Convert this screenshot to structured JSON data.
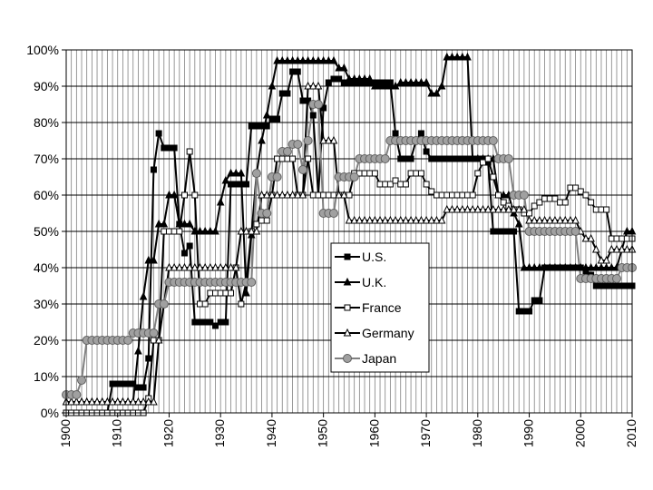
{
  "chart_data": {
    "type": "line",
    "x": [
      1900,
      1901,
      1902,
      1903,
      1904,
      1905,
      1906,
      1907,
      1908,
      1909,
      1910,
      1911,
      1912,
      1913,
      1914,
      1915,
      1916,
      1917,
      1918,
      1919,
      1920,
      1921,
      1922,
      1923,
      1924,
      1925,
      1926,
      1927,
      1928,
      1929,
      1930,
      1931,
      1932,
      1933,
      1934,
      1935,
      1936,
      1937,
      1938,
      1939,
      1940,
      1941,
      1942,
      1943,
      1944,
      1945,
      1946,
      1947,
      1948,
      1949,
      1950,
      1951,
      1952,
      1953,
      1954,
      1955,
      1956,
      1957,
      1958,
      1959,
      1960,
      1961,
      1962,
      1963,
      1964,
      1965,
      1966,
      1967,
      1968,
      1969,
      1970,
      1971,
      1972,
      1973,
      1974,
      1975,
      1976,
      1977,
      1978,
      1979,
      1980,
      1981,
      1982,
      1983,
      1984,
      1985,
      1986,
      1987,
      1988,
      1989,
      1990,
      1991,
      1992,
      1993,
      1994,
      1995,
      1996,
      1997,
      1998,
      1999,
      2000,
      2001,
      2002,
      2003,
      2004,
      2005,
      2006,
      2007,
      2008,
      2009,
      2010
    ],
    "series": [
      {
        "name": "U.S.",
        "color": "#000000",
        "fill": "#000000",
        "marker": "square",
        "values": [
          0,
          0,
          0,
          0,
          0,
          0,
          0,
          0,
          0,
          8,
          8,
          8,
          8,
          8,
          7,
          7,
          15,
          67,
          77,
          73,
          73,
          73,
          52,
          44,
          46,
          25,
          25,
          25,
          25,
          24,
          25,
          25,
          63,
          63,
          63,
          63,
          79,
          79,
          79,
          79,
          81,
          81,
          88,
          88,
          94,
          94,
          86,
          86,
          82,
          60,
          84,
          91,
          92,
          92,
          91,
          91,
          91,
          91,
          91,
          91,
          91,
          91,
          91,
          91,
          77,
          70,
          70,
          70,
          75,
          77,
          72,
          70,
          70,
          70,
          70,
          70,
          70,
          70,
          70,
          70,
          70,
          70,
          69,
          50,
          50,
          50,
          50,
          50,
          28,
          28,
          28,
          31,
          31,
          40,
          40,
          40,
          40,
          40,
          40,
          40,
          40,
          39,
          38,
          35,
          35,
          35,
          35,
          35,
          35,
          35,
          35
        ]
      },
      {
        "name": "U.K.",
        "color": "#000000",
        "fill": "#000000",
        "marker": "triangle",
        "values": [
          3,
          3,
          3,
          3,
          3,
          3,
          3,
          3,
          3,
          3,
          3,
          3,
          3,
          3,
          17,
          32,
          42,
          42,
          52,
          52,
          60,
          60,
          52,
          52,
          52,
          50,
          50,
          50,
          50,
          50,
          58,
          64,
          66,
          66,
          66,
          33,
          49,
          66,
          75,
          82,
          90,
          97,
          97,
          97,
          97,
          97,
          97,
          97,
          97,
          97,
          97,
          97,
          97,
          95,
          95,
          92,
          92,
          92,
          92,
          92,
          90,
          90,
          90,
          90,
          90,
          91,
          91,
          91,
          91,
          91,
          91,
          88,
          88,
          90,
          98,
          98,
          98,
          98,
          98,
          70,
          70,
          70,
          70,
          70,
          60,
          60,
          60,
          55,
          52,
          40,
          40,
          40,
          40,
          40,
          40,
          40,
          40,
          40,
          40,
          40,
          40,
          40,
          40,
          40,
          40,
          40,
          40,
          40,
          45,
          50,
          50
        ]
      },
      {
        "name": "France",
        "color": "#000000",
        "fill": "#ffffff",
        "marker": "square",
        "values": [
          0,
          0,
          0,
          0,
          0,
          0,
          0,
          0,
          0,
          0,
          0,
          0,
          0,
          0,
          0,
          0,
          4,
          20,
          20,
          50,
          50,
          50,
          50,
          60,
          72,
          60,
          30,
          30,
          33,
          33,
          33,
          33,
          33,
          40,
          30,
          36,
          50,
          52,
          53,
          53,
          60,
          70,
          70,
          70,
          70,
          60,
          60,
          70,
          60,
          60,
          60,
          60,
          60,
          60,
          60,
          60,
          66,
          66,
          66,
          66,
          66,
          63,
          63,
          63,
          64,
          63,
          63,
          66,
          66,
          66,
          63,
          61,
          60,
          60,
          60,
          60,
          60,
          60,
          60,
          60,
          66,
          69,
          70,
          65,
          60,
          58,
          57,
          56,
          56,
          55,
          55,
          57,
          58,
          59,
          59,
          59,
          58,
          58,
          62,
          62,
          61,
          60,
          58,
          56,
          56,
          56,
          48,
          48,
          48,
          48,
          48
        ]
      },
      {
        "name": "Germany",
        "color": "#000000",
        "fill": "#ffffff",
        "marker": "triangle",
        "values": [
          3,
          3,
          3,
          3,
          3,
          3,
          3,
          3,
          3,
          3,
          3,
          3,
          3,
          3,
          3,
          3,
          3,
          3,
          20,
          30,
          40,
          40,
          40,
          40,
          40,
          40,
          40,
          40,
          40,
          40,
          40,
          40,
          40,
          40,
          50,
          50,
          50,
          50,
          60,
          60,
          60,
          60,
          60,
          60,
          60,
          60,
          60,
          90,
          90,
          90,
          75,
          75,
          75,
          60,
          60,
          53,
          53,
          53,
          53,
          53,
          53,
          53,
          53,
          53,
          53,
          53,
          53,
          53,
          53,
          53,
          53,
          53,
          53,
          53,
          56,
          56,
          56,
          56,
          56,
          56,
          56,
          56,
          56,
          56,
          56,
          56,
          56,
          56,
          56,
          56,
          53,
          53,
          53,
          53,
          53,
          53,
          53,
          53,
          53,
          53,
          50,
          48,
          48,
          45,
          42,
          42,
          45,
          45,
          45,
          45,
          45
        ]
      },
      {
        "name": "Japan",
        "color": "#808080",
        "fill": "#a0a0a0",
        "marker": "circle",
        "values": [
          5,
          5,
          5,
          9,
          20,
          20,
          20,
          20,
          20,
          20,
          20,
          20,
          20,
          22,
          22,
          22,
          22,
          22,
          30,
          30,
          36,
          36,
          36,
          36,
          36,
          36,
          36,
          36,
          36,
          36,
          36,
          36,
          36,
          36,
          36,
          36,
          36,
          66,
          55,
          55,
          65,
          65,
          72,
          72,
          74,
          74,
          67,
          75,
          85,
          85,
          55,
          55,
          55,
          65,
          65,
          65,
          65,
          70,
          70,
          70,
          70,
          70,
          70,
          75,
          75,
          75,
          75,
          75,
          75,
          75,
          75,
          75,
          75,
          75,
          75,
          75,
          75,
          75,
          75,
          75,
          75,
          75,
          75,
          75,
          70,
          70,
          70,
          60,
          60,
          60,
          50,
          50,
          50,
          50,
          50,
          50,
          50,
          50,
          50,
          50,
          37,
          37,
          37,
          37,
          37,
          37,
          37,
          37,
          40,
          40,
          40
        ]
      }
    ],
    "xlim": [
      1900,
      2010
    ],
    "xticks": [
      1900,
      1910,
      1920,
      1930,
      1940,
      1950,
      1960,
      1970,
      1980,
      1990,
      2000,
      2010
    ],
    "ylim": [
      0,
      100
    ],
    "yticks": [
      {
        "value": 0,
        "label": "0%"
      },
      {
        "value": 10,
        "label": "10%"
      },
      {
        "value": 20,
        "label": "20%"
      },
      {
        "value": 30,
        "label": "30%"
      },
      {
        "value": 40,
        "label": "40%"
      },
      {
        "value": 50,
        "label": "50%"
      },
      {
        "value": 60,
        "label": "60%"
      },
      {
        "value": 70,
        "label": "70%"
      },
      {
        "value": 80,
        "label": "80%"
      },
      {
        "value": 90,
        "label": "90%"
      },
      {
        "value": 100,
        "label": "100%"
      }
    ],
    "grid": true,
    "legend": "center"
  }
}
